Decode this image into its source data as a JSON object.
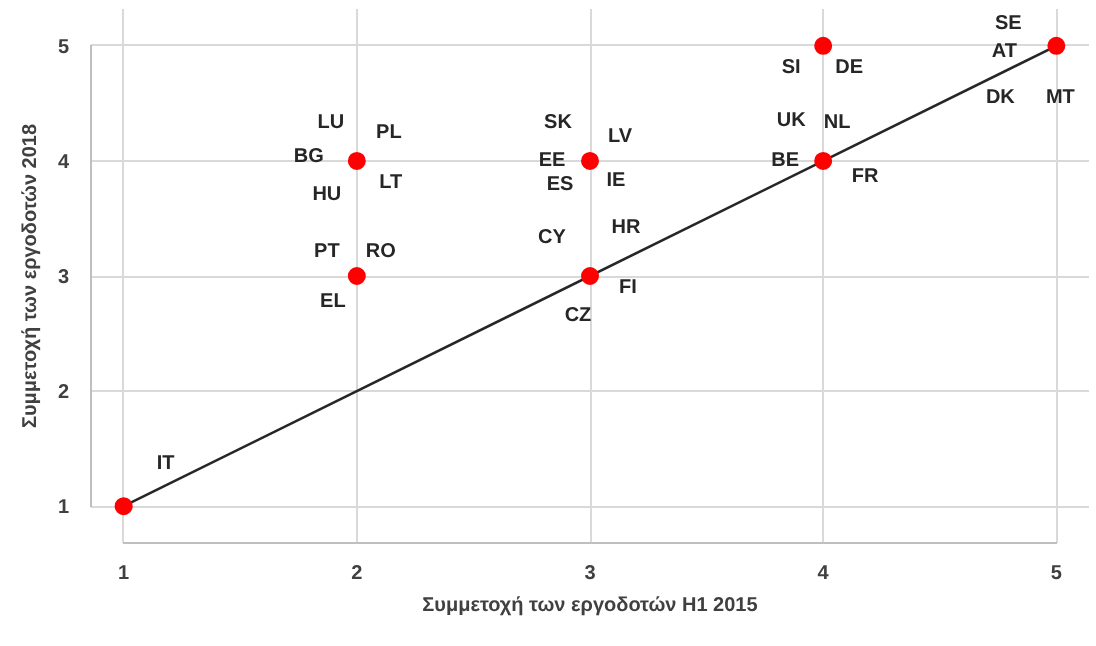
{
  "chart_data": {
    "type": "scatter",
    "xlabel": "Συμμετοχή των εργοδοτών Η1 2015",
    "ylabel": "Συμμετοχή των εργοδοτών 2018",
    "xlim": [
      1,
      5
    ],
    "ylim": [
      1,
      5
    ],
    "xticks": [
      1,
      2,
      3,
      4,
      5
    ],
    "yticks": [
      1,
      2,
      3,
      4,
      5
    ],
    "grid": true,
    "series": [
      {
        "type": "line",
        "color": "#262626",
        "x": [
          1,
          5
        ],
        "values": [
          1,
          5
        ]
      },
      {
        "marker": "circle",
        "color": "#ff0000",
        "x": [
          1,
          2,
          2,
          3,
          3,
          4,
          4,
          5
        ],
        "values": [
          1,
          4,
          3,
          4,
          3,
          5,
          4,
          5
        ]
      }
    ],
    "annotations": [
      {
        "text": "IT",
        "x": 1,
        "y": 1
      },
      {
        "text": "LU",
        "x": 2,
        "y": 4
      },
      {
        "text": "PL",
        "x": 2,
        "y": 4
      },
      {
        "text": "BG",
        "x": 2,
        "y": 4
      },
      {
        "text": "HU",
        "x": 2,
        "y": 4
      },
      {
        "text": "LT",
        "x": 2,
        "y": 4
      },
      {
        "text": "PT",
        "x": 2,
        "y": 3
      },
      {
        "text": "RO",
        "x": 2,
        "y": 3
      },
      {
        "text": "EL",
        "x": 2,
        "y": 3
      },
      {
        "text": "SK",
        "x": 3,
        "y": 4
      },
      {
        "text": "LV",
        "x": 3,
        "y": 4
      },
      {
        "text": "EE",
        "x": 3,
        "y": 4
      },
      {
        "text": "ES",
        "x": 3,
        "y": 4
      },
      {
        "text": "IE",
        "x": 3,
        "y": 4
      },
      {
        "text": "CY",
        "x": 3,
        "y": 3
      },
      {
        "text": "HR",
        "x": 3,
        "y": 3
      },
      {
        "text": "FI",
        "x": 3,
        "y": 3
      },
      {
        "text": "CZ",
        "x": 3,
        "y": 3
      },
      {
        "text": "SI",
        "x": 4,
        "y": 5
      },
      {
        "text": "DE",
        "x": 4,
        "y": 5
      },
      {
        "text": "UK",
        "x": 4,
        "y": 4
      },
      {
        "text": "NL",
        "x": 4,
        "y": 4
      },
      {
        "text": "BE",
        "x": 4,
        "y": 4
      },
      {
        "text": "FR",
        "x": 4,
        "y": 4
      },
      {
        "text": "SE",
        "x": 5,
        "y": 5
      },
      {
        "text": "AT",
        "x": 5,
        "y": 5
      },
      {
        "text": "DK",
        "x": 5,
        "y": 5
      },
      {
        "text": "MT",
        "x": 5,
        "y": 5
      }
    ]
  }
}
